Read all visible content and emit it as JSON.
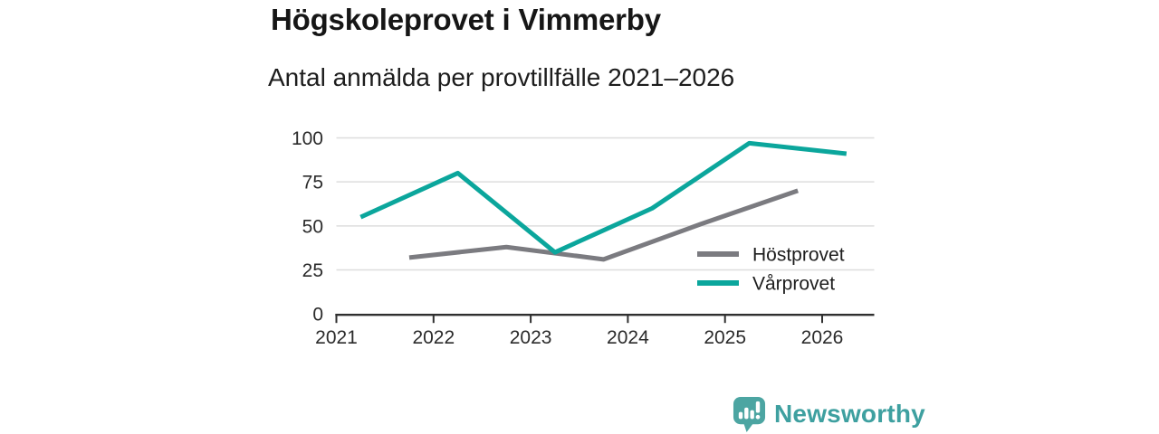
{
  "header": {
    "title": "Högskoleprovet i Vimmerby",
    "subtitle": "Antal anmälda per provtillfälle 2021–2026"
  },
  "chart_data": {
    "type": "line",
    "title": "Högskoleprovet i Vimmerby",
    "subtitle": "Antal anmälda per provtillfälle 2021–2026",
    "xlabel": "",
    "ylabel": "",
    "xlim": [
      2021,
      2026.55
    ],
    "ylim": [
      0,
      100
    ],
    "x_ticks": [
      2021,
      2022,
      2023,
      2024,
      2025,
      2026
    ],
    "y_ticks": [
      0,
      25,
      50,
      75,
      100
    ],
    "grid": "horizontal",
    "grid_color": "#dedede",
    "axis_color": "#2f2f2f",
    "legend_position": "inside-right",
    "series": [
      {
        "name": "Höstprovet",
        "color": "#7b7b80",
        "x": [
          2021.75,
          2022.75,
          2023.75,
          2024.75,
          2025.75
        ],
        "values": [
          32,
          38,
          31,
          51,
          70
        ]
      },
      {
        "name": "Vårprovet",
        "color": "#0ba69c",
        "x": [
          2021.25,
          2022.25,
          2023.25,
          2024.25,
          2025.25,
          2026.25
        ],
        "values": [
          55,
          80,
          35,
          60,
          97,
          91
        ]
      }
    ]
  },
  "footer": {
    "brand": "Newsworthy",
    "brand_color": "#3ea0a0",
    "logo_icon": "speech-bubble-bar-chart-icon"
  }
}
